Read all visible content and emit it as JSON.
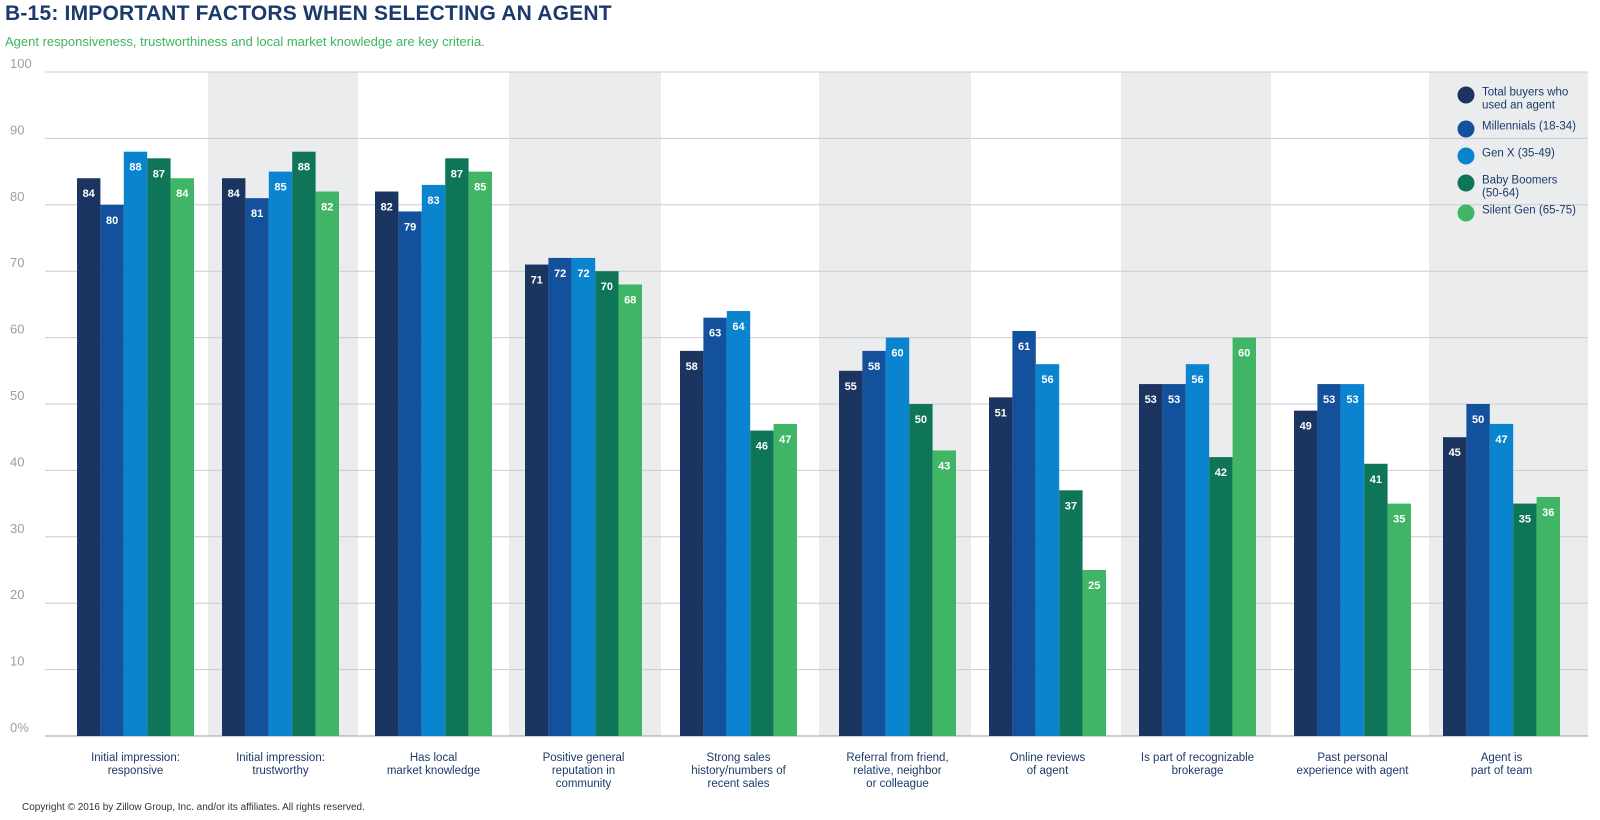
{
  "header": {
    "title": "B-15: IMPORTANT FACTORS WHEN SELECTING AN AGENT",
    "subtitle": "Agent responsiveness, trustworthiness and local market knowledge are key criteria."
  },
  "footer": {
    "copyright": "Copyright © 2016 by Zillow Group, Inc. and/or its affiliates. All rights reserved."
  },
  "chart_data": {
    "type": "bar",
    "title": "B-15: IMPORTANT FACTORS WHEN SELECTING AN AGENT",
    "subtitle": "Agent responsiveness, trustworthiness and local market knowledge are key criteria.",
    "ylim": [
      0,
      100
    ],
    "yticks": [
      "0%",
      "10",
      "20",
      "30",
      "40",
      "50",
      "60",
      "70",
      "80",
      "90",
      "100"
    ],
    "grid": true,
    "legend_position": "top-right",
    "categories": [
      [
        "Initial impression:",
        "responsive"
      ],
      [
        "Initial impression:",
        "trustworthy"
      ],
      [
        "Has local",
        "market knowledge"
      ],
      [
        "Positive general",
        "reputation in",
        "community"
      ],
      [
        "Strong sales",
        "history/numbers of",
        "recent sales"
      ],
      [
        "Referral from friend,",
        "relative, neighbor",
        "or colleague"
      ],
      [
        "Online reviews",
        "of agent"
      ],
      [
        "Is part of recognizable",
        "brokerage"
      ],
      [
        "Past personal",
        "experience with agent"
      ],
      [
        "Agent is",
        "part of team"
      ]
    ],
    "series": [
      {
        "name": [
          "Total buyers who",
          "used an agent"
        ],
        "color": "#1b3560",
        "values": [
          84,
          84,
          82,
          71,
          58,
          55,
          51,
          53,
          49,
          45
        ]
      },
      {
        "name": [
          "Millennials (18-34)"
        ],
        "color": "#13519c",
        "values": [
          80,
          81,
          79,
          72,
          63,
          58,
          61,
          53,
          53,
          50
        ]
      },
      {
        "name": [
          "Gen X (35-49)"
        ],
        "color": "#0a84cf",
        "values": [
          88,
          85,
          83,
          72,
          64,
          60,
          56,
          56,
          53,
          47
        ]
      },
      {
        "name": [
          "Baby Boomers",
          "(50-64)"
        ],
        "color": "#0f7558",
        "values": [
          87,
          88,
          87,
          70,
          46,
          50,
          37,
          42,
          41,
          35
        ]
      },
      {
        "name": [
          "Silent Gen (65-75)"
        ],
        "color": "#40b565",
        "values": [
          84,
          82,
          85,
          68,
          47,
          43,
          25,
          60,
          35,
          36
        ]
      }
    ],
    "shaded_categories": [
      1,
      3,
      5,
      7,
      9
    ],
    "band_color": "#ebecee"
  }
}
